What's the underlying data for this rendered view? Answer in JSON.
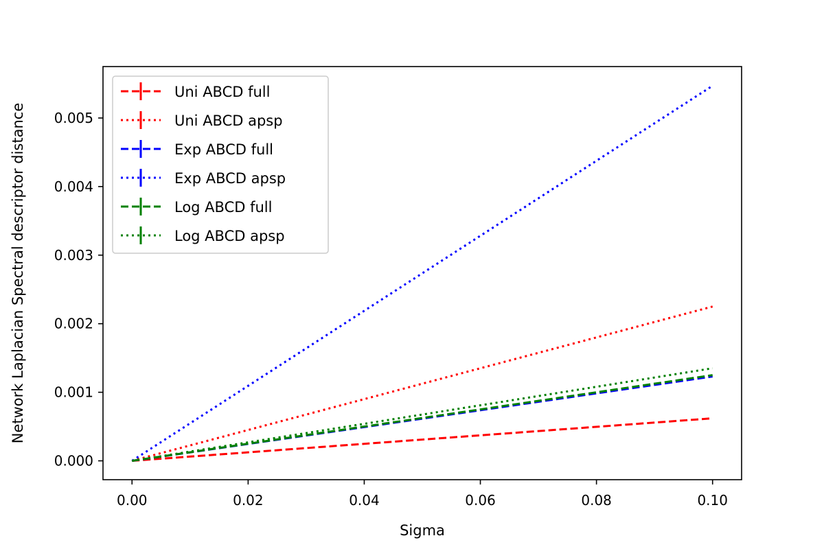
{
  "chart_data": {
    "type": "line",
    "title": "",
    "xlabel": "Sigma",
    "ylabel": "Network Laplacian Spectral descriptor distance",
    "xlim": [
      -0.005,
      0.105
    ],
    "ylim": [
      -0.000275,
      0.00575
    ],
    "xticks": [
      0.0,
      0.02,
      0.04,
      0.06,
      0.08,
      0.1
    ],
    "xtick_labels": [
      "0.00",
      "0.02",
      "0.04",
      "0.06",
      "0.08",
      "0.10"
    ],
    "yticks": [
      0.0,
      0.001,
      0.002,
      0.003,
      0.004,
      0.005
    ],
    "ytick_labels": [
      "0.000",
      "0.001",
      "0.002",
      "0.003",
      "0.004",
      "0.005"
    ],
    "grid": false,
    "legend_position": "top-left",
    "x": [
      0.0,
      0.1
    ],
    "series": [
      {
        "name": "Uni ABCD full",
        "values": [
          0.0,
          0.00062
        ],
        "color": "#ff0000",
        "style": "dashed"
      },
      {
        "name": "Uni ABCD apsp",
        "values": [
          0.0,
          0.00225
        ],
        "color": "#ff0000",
        "style": "dotted"
      },
      {
        "name": "Exp ABCD full",
        "values": [
          0.0,
          0.00123
        ],
        "color": "#0000ff",
        "style": "dashed"
      },
      {
        "name": "Exp ABCD apsp",
        "values": [
          0.0,
          0.00547
        ],
        "color": "#0000ff",
        "style": "dotted"
      },
      {
        "name": "Log ABCD full",
        "values": [
          0.0,
          0.00125
        ],
        "color": "#008000",
        "style": "dashed"
      },
      {
        "name": "Log ABCD apsp",
        "values": [
          0.0,
          0.00135
        ],
        "color": "#008000",
        "style": "dotted"
      }
    ]
  }
}
